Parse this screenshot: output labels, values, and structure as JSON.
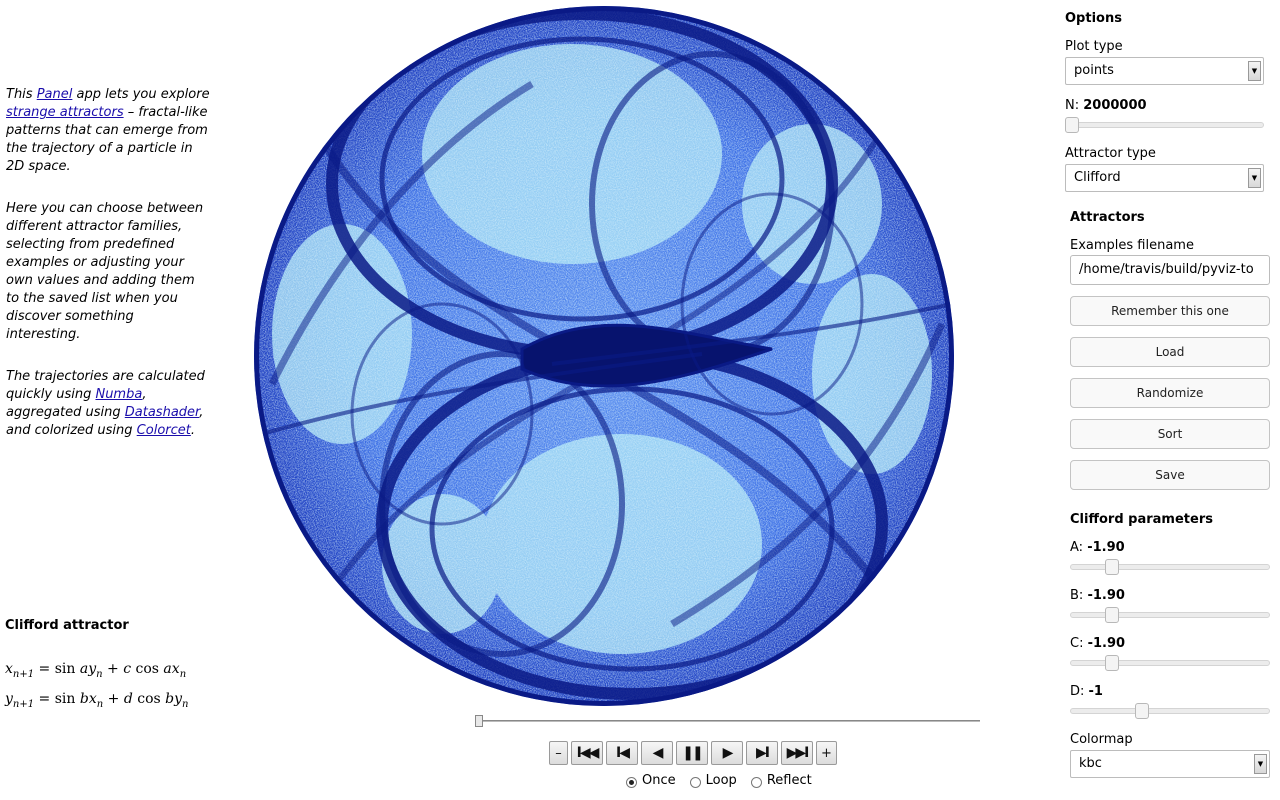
{
  "intro": {
    "p1": {
      "before": "This ",
      "link1": "Panel",
      "middle": " app lets you explore ",
      "link2": "strange attractors",
      "after": " – fractal-like patterns that can emerge from the trajectory of a particle in 2D space."
    },
    "p2": "Here you can choose between different attractor families, selecting from predefined examples or adjusting your own values and adding them to the saved list when you discover something interesting.",
    "p3": {
      "before": "The trajectories are calculated quickly using ",
      "link1": "Numba",
      "middle1": ", aggregated using ",
      "link2": "Datashader",
      "middle2": ", and colorized using ",
      "link3": "Colorcet",
      "after": "."
    }
  },
  "equations": {
    "title": "Clifford attractor",
    "line1": {
      "lhs": "x",
      "lhs_sub": "n+1",
      "eq": " = ",
      "f1": "sin",
      "t1": " ay",
      "t1_sub": "n",
      "plus": " + c ",
      "f2": "cos",
      "t2": " ax",
      "t2_sub": "n"
    },
    "line2": {
      "lhs": "y",
      "lhs_sub": "n+1",
      "eq": " = ",
      "f1": "sin",
      "t1": " bx",
      "t1_sub": "n",
      "plus": " + d ",
      "f2": "cos",
      "t2": " by",
      "t2_sub": "n"
    }
  },
  "player": {
    "value_fraction": 0.0,
    "buttons": {
      "slower": "–",
      "first": "I◀◀",
      "previous": "I◀",
      "reverse": "◀",
      "pause": "❚❚",
      "play": "▶",
      "next": "▶I",
      "last": "▶▶I",
      "faster": "+"
    },
    "loop_modes": [
      {
        "label": "Once",
        "selected": true
      },
      {
        "label": "Loop",
        "selected": false
      },
      {
        "label": "Reflect",
        "selected": false
      }
    ]
  },
  "options": {
    "header": "Options",
    "plot_type": {
      "label": "Plot type",
      "value": "points"
    },
    "n": {
      "label": "N: ",
      "value": "2000000",
      "fraction": 0.0
    },
    "attractor_type": {
      "label": "Attractor type",
      "value": "Clifford"
    }
  },
  "attractors": {
    "header": "Attractors",
    "filename_label": "Examples filename",
    "filename_value": "/home/travis/build/pyviz-to",
    "buttons": [
      "Remember this one",
      "Load",
      "Randomize",
      "Sort",
      "Save"
    ]
  },
  "parameters": {
    "header": "Clifford parameters",
    "a": {
      "label": "A: ",
      "value": "-1.90",
      "fraction": 0.19
    },
    "b": {
      "label": "B: ",
      "value": "-1.90",
      "fraction": 0.19
    },
    "c": {
      "label": "C: ",
      "value": "-1.90",
      "fraction": 0.19
    },
    "d": {
      "label": "D: ",
      "value": "-1",
      "fraction": 0.35
    }
  },
  "colormap": {
    "label": "Colormap",
    "value": "kbc"
  },
  "colors": {
    "plot_dark": "#0a1470",
    "plot_mid": "#2a5be0",
    "plot_light": "#9fdcf2",
    "link": "#1a0dab"
  }
}
